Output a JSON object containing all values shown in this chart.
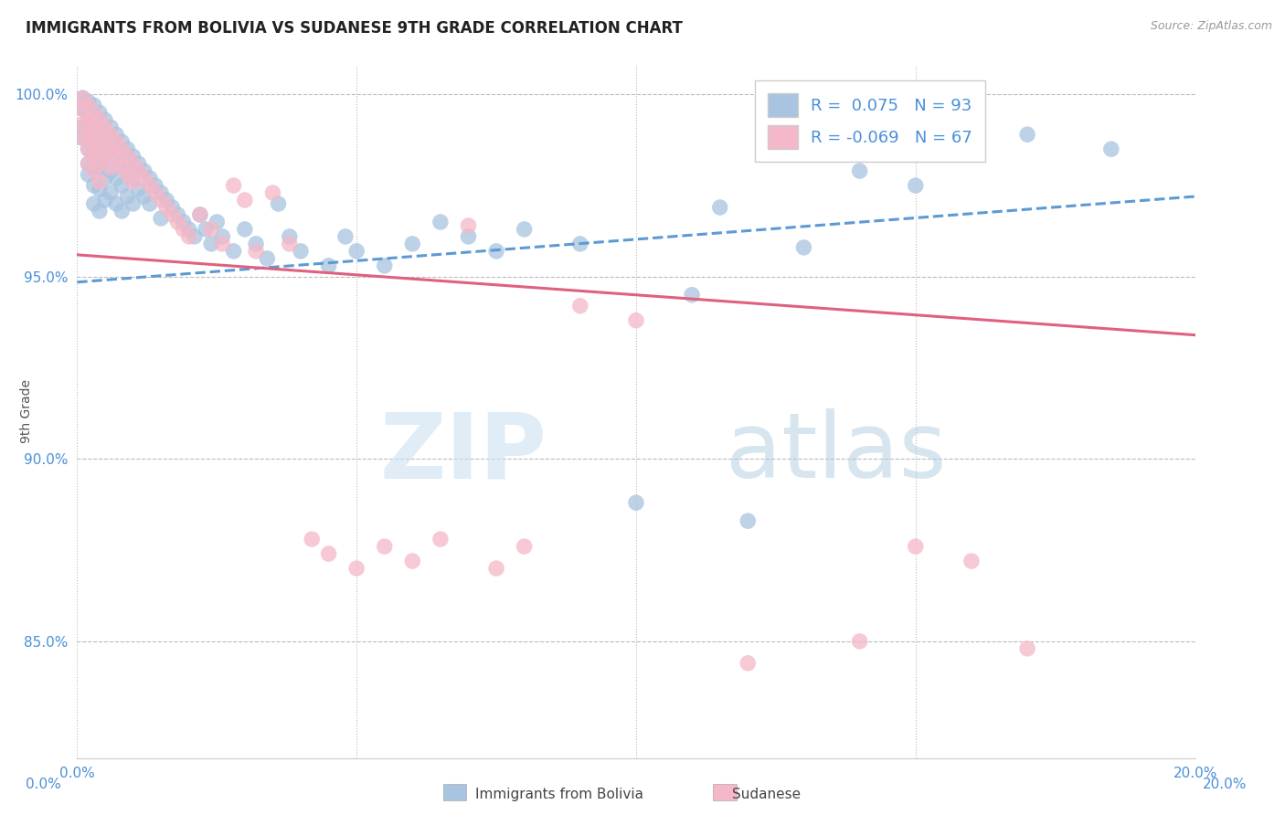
{
  "title": "IMMIGRANTS FROM BOLIVIA VS SUDANESE 9TH GRADE CORRELATION CHART",
  "source": "Source: ZipAtlas.com",
  "ylabel": "9th Grade",
  "x_min": 0.0,
  "x_max": 0.2,
  "y_min": 0.818,
  "y_max": 1.008,
  "y_ticks": [
    0.85,
    0.9,
    0.95,
    1.0
  ],
  "y_tick_labels": [
    "85.0%",
    "90.0%",
    "95.0%",
    "100.0%"
  ],
  "legend_r_bolivia": "0.075",
  "legend_n_bolivia": "93",
  "legend_r_sudanese": "-0.069",
  "legend_n_sudanese": "67",
  "color_bolivia": "#a8c4e0",
  "color_sudanese": "#f4b8c8",
  "line_color_bolivia": "#5b9bd5",
  "line_color_sudanese": "#e06080",
  "watermark_zip": "ZIP",
  "watermark_atlas": "atlas",
  "bolivia_line": [
    0.0,
    0.9485,
    0.2,
    0.972
  ],
  "sudanese_line": [
    0.0,
    0.956,
    0.2,
    0.934
  ],
  "bolivia_points": [
    [
      0.001,
      0.999
    ],
    [
      0.001,
      0.996
    ],
    [
      0.001,
      0.991
    ],
    [
      0.001,
      0.988
    ],
    [
      0.002,
      0.998
    ],
    [
      0.002,
      0.994
    ],
    [
      0.002,
      0.991
    ],
    [
      0.002,
      0.985
    ],
    [
      0.002,
      0.981
    ],
    [
      0.002,
      0.978
    ],
    [
      0.003,
      0.997
    ],
    [
      0.003,
      0.992
    ],
    [
      0.003,
      0.988
    ],
    [
      0.003,
      0.984
    ],
    [
      0.003,
      0.98
    ],
    [
      0.003,
      0.975
    ],
    [
      0.003,
      0.97
    ],
    [
      0.004,
      0.995
    ],
    [
      0.004,
      0.99
    ],
    [
      0.004,
      0.985
    ],
    [
      0.004,
      0.98
    ],
    [
      0.004,
      0.974
    ],
    [
      0.004,
      0.968
    ],
    [
      0.005,
      0.993
    ],
    [
      0.005,
      0.988
    ],
    [
      0.005,
      0.983
    ],
    [
      0.005,
      0.977
    ],
    [
      0.005,
      0.971
    ],
    [
      0.006,
      0.991
    ],
    [
      0.006,
      0.985
    ],
    [
      0.006,
      0.979
    ],
    [
      0.006,
      0.973
    ],
    [
      0.007,
      0.989
    ],
    [
      0.007,
      0.983
    ],
    [
      0.007,
      0.977
    ],
    [
      0.007,
      0.97
    ],
    [
      0.008,
      0.987
    ],
    [
      0.008,
      0.981
    ],
    [
      0.008,
      0.975
    ],
    [
      0.008,
      0.968
    ],
    [
      0.009,
      0.985
    ],
    [
      0.009,
      0.979
    ],
    [
      0.009,
      0.972
    ],
    [
      0.01,
      0.983
    ],
    [
      0.01,
      0.977
    ],
    [
      0.01,
      0.97
    ],
    [
      0.011,
      0.981
    ],
    [
      0.011,
      0.974
    ],
    [
      0.012,
      0.979
    ],
    [
      0.012,
      0.972
    ],
    [
      0.013,
      0.977
    ],
    [
      0.013,
      0.97
    ],
    [
      0.014,
      0.975
    ],
    [
      0.015,
      0.973
    ],
    [
      0.015,
      0.966
    ],
    [
      0.016,
      0.971
    ],
    [
      0.017,
      0.969
    ],
    [
      0.018,
      0.967
    ],
    [
      0.019,
      0.965
    ],
    [
      0.02,
      0.963
    ],
    [
      0.021,
      0.961
    ],
    [
      0.022,
      0.967
    ],
    [
      0.023,
      0.963
    ],
    [
      0.024,
      0.959
    ],
    [
      0.025,
      0.965
    ],
    [
      0.026,
      0.961
    ],
    [
      0.028,
      0.957
    ],
    [
      0.03,
      0.963
    ],
    [
      0.032,
      0.959
    ],
    [
      0.034,
      0.955
    ],
    [
      0.036,
      0.97
    ],
    [
      0.038,
      0.961
    ],
    [
      0.04,
      0.957
    ],
    [
      0.045,
      0.953
    ],
    [
      0.048,
      0.961
    ],
    [
      0.05,
      0.957
    ],
    [
      0.055,
      0.953
    ],
    [
      0.06,
      0.959
    ],
    [
      0.065,
      0.965
    ],
    [
      0.07,
      0.961
    ],
    [
      0.075,
      0.957
    ],
    [
      0.08,
      0.963
    ],
    [
      0.09,
      0.959
    ],
    [
      0.1,
      0.888
    ],
    [
      0.11,
      0.945
    ],
    [
      0.115,
      0.969
    ],
    [
      0.12,
      0.883
    ],
    [
      0.13,
      0.958
    ],
    [
      0.14,
      0.979
    ],
    [
      0.15,
      0.975
    ],
    [
      0.155,
      0.993
    ],
    [
      0.17,
      0.989
    ],
    [
      0.185,
      0.985
    ]
  ],
  "sudanese_points": [
    [
      0.001,
      0.999
    ],
    [
      0.001,
      0.996
    ],
    [
      0.001,
      0.992
    ],
    [
      0.001,
      0.988
    ],
    [
      0.002,
      0.997
    ],
    [
      0.002,
      0.993
    ],
    [
      0.002,
      0.989
    ],
    [
      0.002,
      0.985
    ],
    [
      0.002,
      0.981
    ],
    [
      0.003,
      0.995
    ],
    [
      0.003,
      0.991
    ],
    [
      0.003,
      0.987
    ],
    [
      0.003,
      0.983
    ],
    [
      0.003,
      0.979
    ],
    [
      0.004,
      0.993
    ],
    [
      0.004,
      0.989
    ],
    [
      0.004,
      0.985
    ],
    [
      0.004,
      0.981
    ],
    [
      0.004,
      0.976
    ],
    [
      0.005,
      0.991
    ],
    [
      0.005,
      0.987
    ],
    [
      0.005,
      0.983
    ],
    [
      0.006,
      0.989
    ],
    [
      0.006,
      0.985
    ],
    [
      0.006,
      0.98
    ],
    [
      0.007,
      0.987
    ],
    [
      0.007,
      0.983
    ],
    [
      0.008,
      0.985
    ],
    [
      0.008,
      0.98
    ],
    [
      0.009,
      0.983
    ],
    [
      0.009,
      0.978
    ],
    [
      0.01,
      0.981
    ],
    [
      0.01,
      0.976
    ],
    [
      0.011,
      0.979
    ],
    [
      0.012,
      0.977
    ],
    [
      0.013,
      0.975
    ],
    [
      0.014,
      0.973
    ],
    [
      0.015,
      0.971
    ],
    [
      0.016,
      0.969
    ],
    [
      0.017,
      0.967
    ],
    [
      0.018,
      0.965
    ],
    [
      0.019,
      0.963
    ],
    [
      0.02,
      0.961
    ],
    [
      0.022,
      0.967
    ],
    [
      0.024,
      0.963
    ],
    [
      0.026,
      0.959
    ],
    [
      0.028,
      0.975
    ],
    [
      0.03,
      0.971
    ],
    [
      0.032,
      0.957
    ],
    [
      0.035,
      0.973
    ],
    [
      0.038,
      0.959
    ],
    [
      0.042,
      0.878
    ],
    [
      0.045,
      0.874
    ],
    [
      0.05,
      0.87
    ],
    [
      0.055,
      0.876
    ],
    [
      0.06,
      0.872
    ],
    [
      0.065,
      0.878
    ],
    [
      0.07,
      0.964
    ],
    [
      0.075,
      0.87
    ],
    [
      0.08,
      0.876
    ],
    [
      0.09,
      0.942
    ],
    [
      0.1,
      0.938
    ],
    [
      0.12,
      0.844
    ],
    [
      0.14,
      0.85
    ],
    [
      0.15,
      0.876
    ],
    [
      0.16,
      0.872
    ],
    [
      0.17,
      0.848
    ]
  ]
}
